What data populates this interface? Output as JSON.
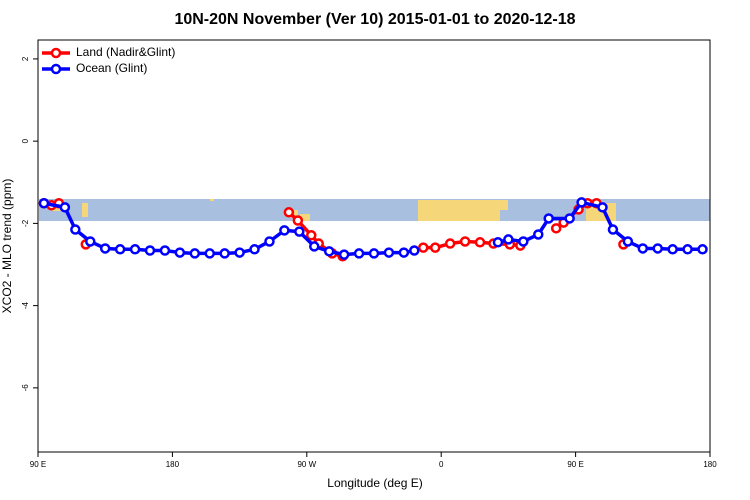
{
  "chart_data": {
    "type": "line",
    "title": "10N-20N November (Ver 10)   2015-01-01 to 2020-12-18",
    "x_label": "Longitude (deg E)",
    "y_label": "XCO2 - MLO trend (ppm)",
    "xlim": [
      90,
      540
    ],
    "ylim": [
      -7.56,
      2.46
    ],
    "xticks": [
      {
        "value": 90,
        "label": "90 E"
      },
      180,
      {
        "value": 270,
        "label": "90 W"
      },
      {
        "value": 360,
        "label": "0"
      },
      {
        "value": 450,
        "label": "90 E"
      },
      {
        "value": 540,
        "label": "180"
      }
    ],
    "yticks": [
      2,
      0,
      -2,
      -4,
      -6
    ],
    "legend": "top-left",
    "series": [
      {
        "name": "Land (Nadir&Glint)",
        "color": "#ff0000",
        "x": [
          94,
          99,
          104,
          null,
          122,
          null,
          258,
          264,
          273,
          278,
          287,
          294,
          null,
          348,
          356,
          366,
          376,
          386,
          395,
          406,
          413,
          null,
          437,
          442,
          452,
          458,
          464,
          null,
          482
        ],
        "values": [
          -1.51,
          -1.56,
          -1.51,
          null,
          -2.51,
          null,
          -1.73,
          -1.93,
          -2.29,
          -2.49,
          -2.73,
          -2.8,
          null,
          -2.59,
          -2.59,
          -2.49,
          -2.44,
          -2.46,
          -2.49,
          -2.51,
          -2.54,
          null,
          -2.12,
          -1.98,
          -1.66,
          -1.51,
          -1.51,
          null,
          -2.51
        ]
      },
      {
        "name": "Ocean (Glint)",
        "color": "#0000ff",
        "x": [
          94,
          108,
          115,
          125,
          135,
          145,
          155,
          165,
          175,
          185,
          195,
          205,
          215,
          225,
          235,
          245,
          255,
          265,
          275,
          285,
          295,
          305,
          315,
          325,
          335,
          342,
          null,
          398,
          405,
          415,
          425,
          432,
          446,
          454,
          468,
          475,
          485,
          495,
          505,
          515,
          525,
          535
        ],
        "values": [
          -1.51,
          -1.61,
          -2.15,
          -2.44,
          -2.61,
          -2.63,
          -2.63,
          -2.66,
          -2.66,
          -2.71,
          -2.73,
          -2.73,
          -2.73,
          -2.71,
          -2.63,
          -2.44,
          -2.17,
          -2.2,
          -2.56,
          -2.68,
          -2.76,
          -2.73,
          -2.73,
          -2.71,
          -2.71,
          -2.66,
          null,
          -2.46,
          -2.39,
          -2.44,
          -2.27,
          -1.88,
          -1.88,
          -1.49,
          -1.61,
          -2.15,
          -2.44,
          -2.61,
          -2.61,
          -2.63,
          -2.63,
          -2.63
        ]
      }
    ]
  }
}
